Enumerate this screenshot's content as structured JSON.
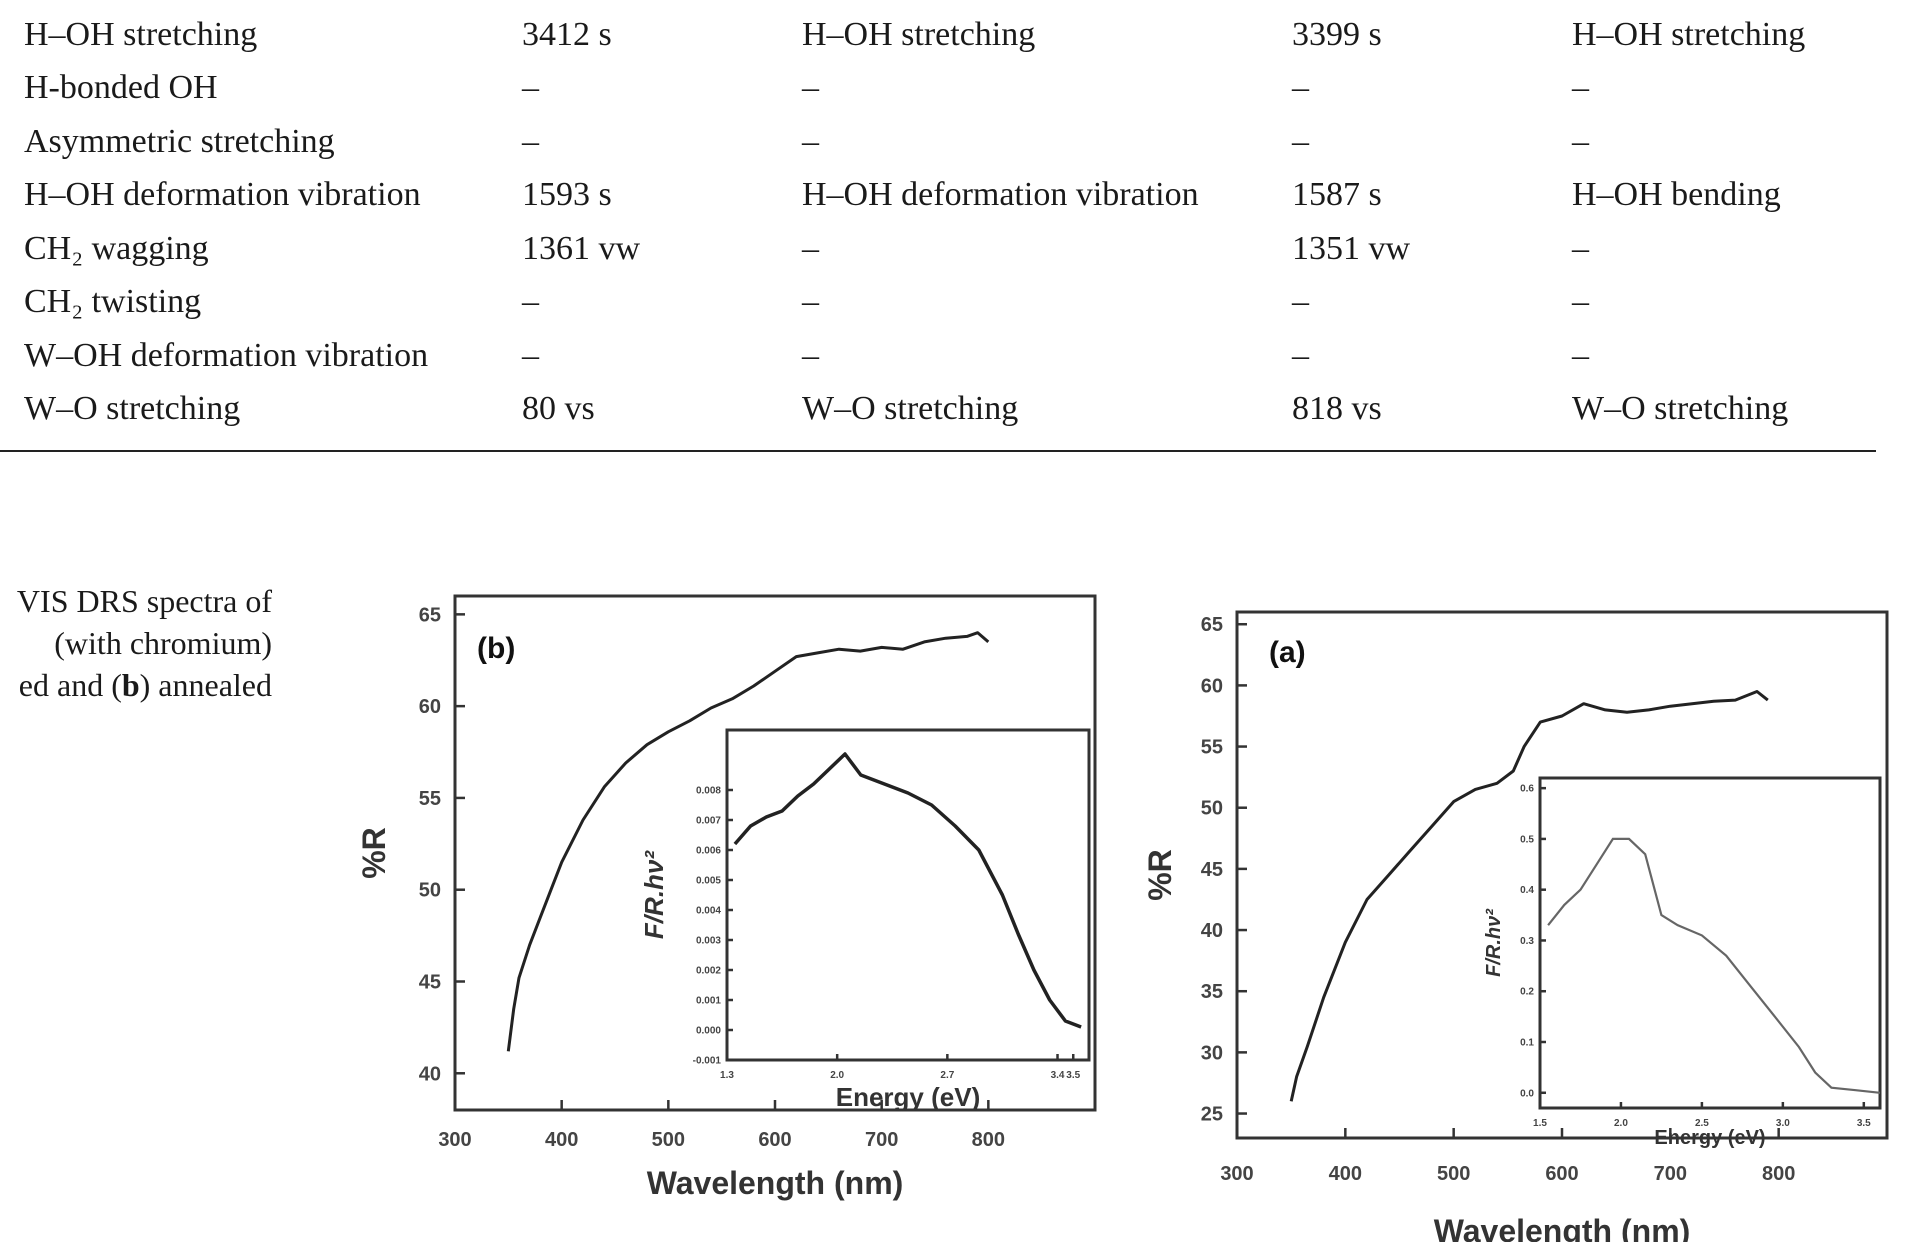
{
  "table": {
    "rows": [
      [
        "H–OH stretching",
        "3412 s",
        "H–OH stretching",
        "3399 s",
        "H–OH stretching"
      ],
      [
        "H-bonded OH",
        "–",
        "–",
        "–",
        "–"
      ],
      [
        "Asymmetric stretching",
        "–",
        "–",
        "–",
        "–"
      ],
      [
        "H–OH deformation vibration",
        "1593 s",
        "H–OH deformation vibration",
        "1587 s",
        "H–OH bending"
      ],
      [
        "CH₂ wagging",
        "1361 vw",
        "–",
        "1351 vw",
        "–"
      ],
      [
        "CH₂ twisting",
        "–",
        "–",
        "–",
        "–"
      ],
      [
        "W–OH deformation vibration",
        "–",
        "–",
        "–",
        "–"
      ],
      [
        "W–O stretching",
        "80 vs",
        "W–O stretching",
        "818 vs",
        "W–O stretching"
      ]
    ]
  },
  "caption": {
    "line1": "VIS DRS spectra of",
    "line2": "(with chromium)",
    "line3_pre": "ed and (",
    "line3_bold": "b",
    "line3_post": ") annealed"
  },
  "chart_data": [
    {
      "type": "line",
      "panel_label": "(b)",
      "xlabel": "Wavelength (nm)",
      "ylabel": "%R",
      "xlim": [
        300,
        900
      ],
      "ylim": [
        38,
        66
      ],
      "xticks": [
        300,
        400,
        500,
        600,
        700,
        800
      ],
      "yticks": [
        40,
        45,
        50,
        55,
        60,
        65
      ],
      "series": [
        {
          "x": [
            350,
            355,
            360,
            370,
            380,
            390,
            400,
            420,
            440,
            460,
            480,
            500,
            520,
            540,
            560,
            580,
            600,
            620,
            640,
            660,
            680,
            700,
            720,
            740,
            760,
            780,
            790,
            800
          ],
          "y": [
            41.2,
            43.5,
            45.2,
            47.0,
            48.5,
            50.0,
            51.5,
            53.8,
            55.6,
            56.9,
            57.9,
            58.6,
            59.2,
            59.9,
            60.4,
            61.1,
            61.9,
            62.7,
            62.9,
            63.1,
            63.0,
            63.2,
            63.1,
            63.5,
            63.7,
            63.8,
            64.0,
            63.5
          ]
        }
      ],
      "inset": {
        "xlabel": "Energy (eV)",
        "ylabel": "F/R.hν²",
        "xlim": [
          1.3,
          3.6
        ],
        "ylim": [
          -0.001,
          0.01
        ],
        "xticks": [
          1.3,
          2.0,
          2.7,
          3.4,
          3.5
        ],
        "yticks": [
          -0.001,
          0.0,
          0.001,
          0.002,
          0.003,
          0.004,
          0.005,
          0.006,
          0.007,
          0.008
        ],
        "series": [
          {
            "x": [
              1.35,
              1.45,
              1.55,
              1.65,
              1.75,
              1.85,
              1.95,
              2.05,
              2.15,
              2.3,
              2.45,
              2.6,
              2.75,
              2.9,
              3.05,
              3.15,
              3.25,
              3.35,
              3.45,
              3.55
            ],
            "y": [
              0.0062,
              0.0068,
              0.0071,
              0.0073,
              0.0078,
              0.0082,
              0.0087,
              0.0092,
              0.0085,
              0.0082,
              0.0079,
              0.0075,
              0.0068,
              0.006,
              0.0045,
              0.0032,
              0.002,
              0.001,
              0.0003,
              0.0001
            ]
          }
        ]
      }
    },
    {
      "type": "line",
      "panel_label": "(a)",
      "xlabel": "Wavelength (nm)",
      "ylabel": "%R",
      "xlim": [
        300,
        900
      ],
      "ylim": [
        23,
        66
      ],
      "xticks": [
        300,
        400,
        500,
        600,
        700,
        800
      ],
      "yticks": [
        25,
        30,
        35,
        40,
        45,
        50,
        55,
        60,
        65
      ],
      "series": [
        {
          "x": [
            350,
            355,
            365,
            380,
            400,
            420,
            440,
            460,
            480,
            500,
            520,
            540,
            555,
            565,
            580,
            600,
            620,
            640,
            660,
            680,
            700,
            720,
            740,
            760,
            780,
            790
          ],
          "y": [
            26.0,
            28.0,
            30.5,
            34.5,
            39.0,
            42.5,
            44.5,
            46.5,
            48.5,
            50.5,
            51.5,
            52.0,
            53.0,
            55.0,
            57.0,
            57.5,
            58.5,
            58.0,
            57.8,
            58.0,
            58.3,
            58.5,
            58.7,
            58.8,
            59.5,
            58.8
          ]
        }
      ],
      "inset": {
        "xlabel": "Energy (eV)",
        "ylabel": "F/R.hν²",
        "xlim": [
          1.5,
          3.6
        ],
        "ylim": [
          -0.03,
          0.62
        ],
        "xticks": [
          1.5,
          2.0,
          2.5,
          3.0,
          3.5
        ],
        "yticks": [
          0.0,
          0.1,
          0.2,
          0.3,
          0.4,
          0.5,
          0.6
        ],
        "series": [
          {
            "x": [
              1.55,
              1.65,
              1.75,
              1.85,
              1.95,
              2.05,
              2.15,
              2.25,
              2.35,
              2.5,
              2.65,
              2.8,
              2.95,
              3.1,
              3.2,
              3.3,
              3.45,
              3.6
            ],
            "y": [
              0.33,
              0.37,
              0.4,
              0.45,
              0.5,
              0.5,
              0.47,
              0.35,
              0.33,
              0.31,
              0.27,
              0.21,
              0.15,
              0.09,
              0.04,
              0.01,
              0.005,
              0.0
            ]
          }
        ]
      }
    }
  ]
}
